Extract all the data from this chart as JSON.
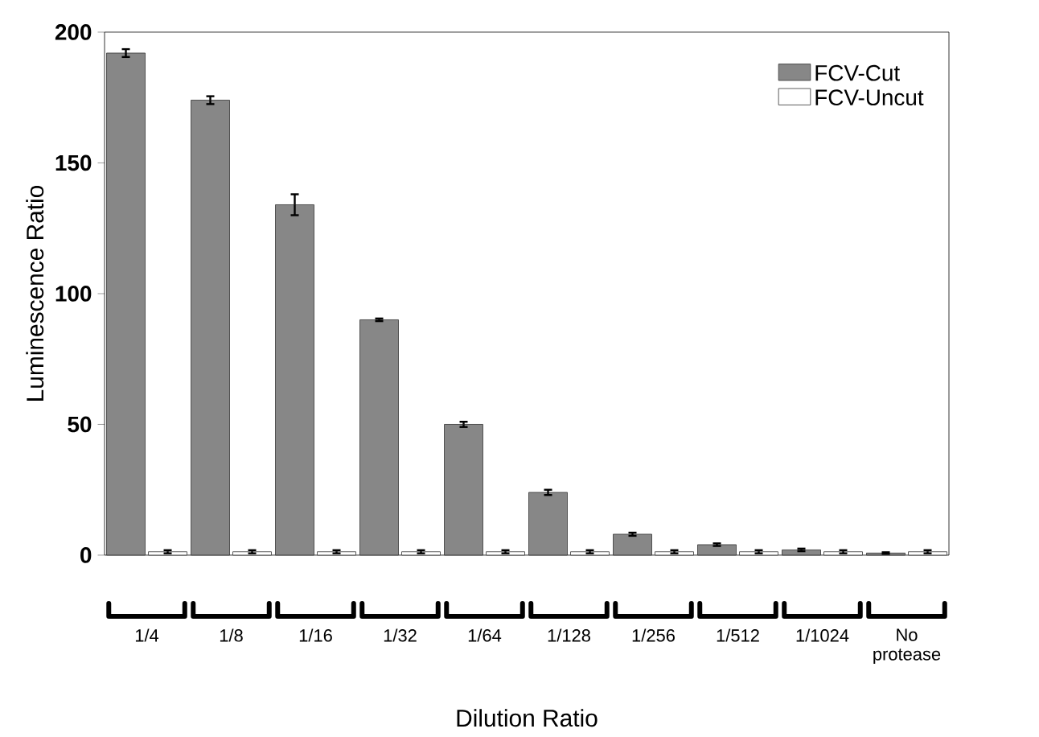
{
  "chart_data": {
    "type": "bar",
    "xlabel": "Dilution Ratio",
    "ylabel": "Luminescence Ratio",
    "categories": [
      "1/4",
      "1/8",
      "1/16",
      "1/32",
      "1/64",
      "1/128",
      "1/256",
      "1/512",
      "1/1024",
      "No protease"
    ],
    "series": [
      {
        "name": "FCV-Cut",
        "color": "#878787",
        "values": [
          192,
          174,
          134,
          90,
          50,
          24,
          8,
          4,
          2,
          0.8
        ],
        "errors": [
          1.5,
          1.5,
          4,
          0.5,
          1,
          1,
          0.6,
          0.5,
          0.5,
          0.3
        ]
      },
      {
        "name": "FCV-Uncut",
        "color": "#ffffff",
        "values": [
          1.3,
          1.3,
          1.3,
          1.3,
          1.3,
          1.3,
          1.3,
          1.3,
          1.3,
          1.3
        ],
        "errors": [
          0.6,
          0.6,
          0.6,
          0.6,
          0.6,
          0.6,
          0.6,
          0.6,
          0.6,
          0.6
        ]
      }
    ],
    "ylim": [
      0,
      200
    ],
    "yticks": [
      0,
      50,
      100,
      150,
      200
    ],
    "grid": false,
    "legend": "top right"
  }
}
